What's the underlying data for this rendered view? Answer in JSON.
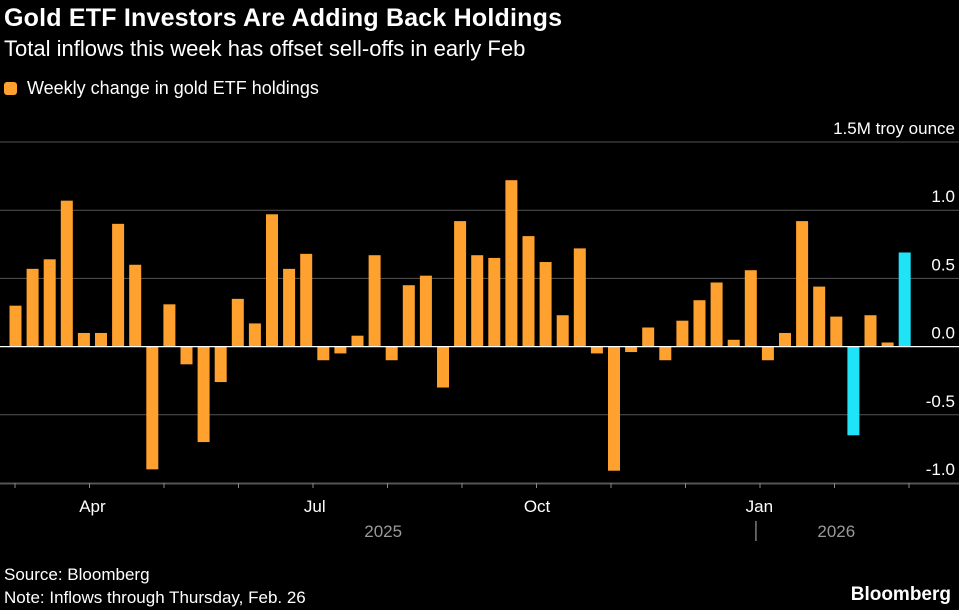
{
  "header": {
    "title": "Gold ETF Investors Are Adding Back Holdings",
    "subtitle": "Total inflows this week has offset sell-offs in early Feb"
  },
  "legend": {
    "label": "Weekly change in gold ETF holdings"
  },
  "footer": {
    "source": "Source: Bloomberg",
    "note": "Note: Inflows through Thursday, Feb. 26",
    "brand": "Bloomberg"
  },
  "colors": {
    "orange": "#FFA12E",
    "cyan": "#1FE4F7",
    "background": "#000000",
    "grid": "#555555",
    "axis_text": "#BBBBBB",
    "year_text": "#999999"
  },
  "chart_data": {
    "type": "bar",
    "title": "Gold ETF Investors Are Adding Back Holdings",
    "ylabel": "1.5M troy ounce",
    "ylim": [
      -1.0,
      1.5
    ],
    "y_ticks": [
      {
        "value": 1.0,
        "label": "1.0"
      },
      {
        "value": 0.5,
        "label": "0.5"
      },
      {
        "value": 0.0,
        "label": "0.0"
      },
      {
        "value": -0.5,
        "label": "-0.5"
      },
      {
        "value": -1.0,
        "label": "-1.0"
      }
    ],
    "top_tick_label": "1.5M troy ounce",
    "x_month_labels": [
      {
        "label": "Apr",
        "index": 4.5
      },
      {
        "label": "Jul",
        "index": 17.5
      },
      {
        "label": "Oct",
        "index": 30.5
      },
      {
        "label": "Jan",
        "index": 43.5
      }
    ],
    "x_year_labels": [
      {
        "label": "2025",
        "index": 21.5
      },
      {
        "label": "2026",
        "index": 48
      }
    ],
    "year_divider_index": 43.3,
    "series": [
      {
        "name": "Weekly change in gold ETF holdings",
        "values": [
          0.3,
          0.57,
          0.64,
          1.07,
          0.1,
          0.1,
          0.9,
          0.6,
          -0.9,
          0.31,
          -0.13,
          -0.7,
          -0.26,
          0.35,
          0.17,
          0.97,
          0.57,
          0.68,
          -0.1,
          -0.05,
          0.08,
          0.67,
          -0.1,
          0.45,
          0.52,
          -0.3,
          0.92,
          0.67,
          0.65,
          1.22,
          0.81,
          0.62,
          0.23,
          0.72,
          -0.05,
          -0.91,
          -0.04,
          0.14,
          -0.1,
          0.19,
          0.34,
          0.47,
          0.05,
          0.56,
          -0.1,
          0.1,
          0.92,
          0.44,
          0.22,
          -0.65,
          0.23,
          0.03,
          0.69
        ],
        "highlight": [
          "orange",
          "orange",
          "orange",
          "orange",
          "orange",
          "orange",
          "orange",
          "orange",
          "orange",
          "orange",
          "orange",
          "orange",
          "orange",
          "orange",
          "orange",
          "orange",
          "orange",
          "orange",
          "orange",
          "orange",
          "orange",
          "orange",
          "orange",
          "orange",
          "orange",
          "orange",
          "orange",
          "orange",
          "orange",
          "orange",
          "orange",
          "orange",
          "orange",
          "orange",
          "orange",
          "orange",
          "orange",
          "orange",
          "orange",
          "orange",
          "orange",
          "orange",
          "orange",
          "orange",
          "orange",
          "orange",
          "orange",
          "orange",
          "orange",
          "cyan",
          "orange",
          "orange",
          "cyan"
        ]
      }
    ]
  }
}
